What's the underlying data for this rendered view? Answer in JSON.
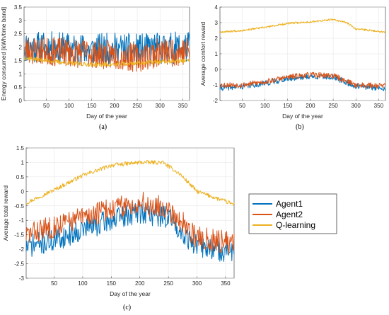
{
  "colors": {
    "agent1": "#0072BD",
    "agent2": "#D95319",
    "qlearning": "#EDB120",
    "grid": "#e3e3e3",
    "axis": "#262626"
  },
  "legend": {
    "items": [
      "Agent1",
      "Agent2",
      "Q-learning"
    ]
  },
  "chart_data": [
    {
      "panel": "(a)",
      "type": "line",
      "xlabel": "Day of the year",
      "ylabel": "Energy consumed [kWh/time band]",
      "xlim": [
        1,
        365
      ],
      "ylim": [
        0,
        3.5
      ],
      "xticks": [
        50,
        100,
        150,
        200,
        250,
        300,
        350
      ],
      "yticks": [
        0,
        0.5,
        1,
        1.5,
        2,
        2.5,
        3,
        3.5
      ],
      "ytick_labels": [
        "0",
        "0.5",
        "1",
        "1.5",
        "2",
        "2.5",
        "3",
        "3.5"
      ],
      "grid": true,
      "series": [
        {
          "name": "Agent1",
          "color": "#0072BD",
          "keypoints_x": [
            1,
            50,
            100,
            150,
            200,
            250,
            300,
            365
          ],
          "keypoints_y": [
            2.0,
            2.0,
            1.95,
            1.9,
            1.95,
            1.9,
            1.95,
            2.0
          ],
          "amplitude": 0.6,
          "seed": 11
        },
        {
          "name": "Agent2",
          "color": "#D95319",
          "keypoints_x": [
            1,
            50,
            100,
            150,
            200,
            250,
            300,
            365
          ],
          "keypoints_y": [
            1.9,
            1.85,
            1.8,
            1.75,
            1.7,
            1.6,
            1.8,
            1.85
          ],
          "amplitude": 0.55,
          "seed": 23
        },
        {
          "name": "Q-learning",
          "color": "#EDB120",
          "keypoints_x": [
            1,
            50,
            100,
            150,
            200,
            250,
            300,
            365
          ],
          "keypoints_y": [
            1.6,
            1.5,
            1.4,
            1.35,
            1.35,
            1.4,
            1.45,
            1.5
          ],
          "amplitude": 0.08,
          "seed": 37
        }
      ]
    },
    {
      "panel": "(b)",
      "type": "line",
      "xlabel": "Day of the year",
      "ylabel": "Average comfort reward",
      "xlim": [
        1,
        365
      ],
      "ylim": [
        -2,
        4
      ],
      "xticks": [
        50,
        100,
        150,
        200,
        250,
        300,
        350
      ],
      "yticks": [
        -2,
        -1,
        0,
        1,
        2,
        3,
        4
      ],
      "ytick_labels": [
        "-2",
        "-1",
        "0",
        "1",
        "2",
        "3",
        "4"
      ],
      "grid": true,
      "series": [
        {
          "name": "Agent1",
          "color": "#0072BD",
          "keypoints_x": [
            1,
            50,
            100,
            150,
            200,
            250,
            300,
            365
          ],
          "keypoints_y": [
            -1.2,
            -1.1,
            -0.9,
            -0.6,
            -0.45,
            -0.5,
            -1.1,
            -1.2
          ],
          "amplitude": 0.18,
          "seed": 41
        },
        {
          "name": "Agent2",
          "color": "#D95319",
          "keypoints_x": [
            1,
            50,
            100,
            150,
            200,
            250,
            300,
            365
          ],
          "keypoints_y": [
            -1.0,
            -1.0,
            -0.8,
            -0.5,
            -0.35,
            -0.4,
            -1.0,
            -1.05
          ],
          "amplitude": 0.18,
          "seed": 53
        },
        {
          "name": "Q-learning",
          "color": "#EDB120",
          "keypoints_x": [
            1,
            50,
            100,
            150,
            200,
            250,
            280,
            300,
            365
          ],
          "keypoints_y": [
            2.4,
            2.5,
            2.7,
            2.95,
            3.05,
            3.2,
            3.0,
            2.6,
            2.4
          ],
          "amplitude": 0.06,
          "seed": 67
        }
      ]
    },
    {
      "panel": "(c)",
      "type": "line",
      "xlabel": "Day of the year",
      "ylabel": "Average total reward",
      "xlim": [
        1,
        365
      ],
      "ylim": [
        -3,
        1.5
      ],
      "xticks": [
        50,
        100,
        150,
        200,
        250,
        300,
        350
      ],
      "yticks": [
        -3,
        -2.5,
        -2,
        -1.5,
        -1,
        -0.5,
        0,
        0.5,
        1,
        1.5
      ],
      "ytick_labels": [
        "-3",
        "-2.5",
        "-2",
        "-1.5",
        "-1",
        "-0.5",
        "0",
        "0.5",
        "1",
        "1.5"
      ],
      "grid": true,
      "series": [
        {
          "name": "Agent1",
          "color": "#0072BD",
          "keypoints_x": [
            1,
            50,
            100,
            150,
            200,
            250,
            300,
            365
          ],
          "keypoints_y": [
            -1.9,
            -1.7,
            -1.3,
            -1.0,
            -0.7,
            -0.9,
            -1.9,
            -2.1
          ],
          "amplitude": 0.4,
          "seed": 71
        },
        {
          "name": "Agent2",
          "color": "#D95319",
          "keypoints_x": [
            1,
            50,
            100,
            150,
            200,
            250,
            300,
            365
          ],
          "keypoints_y": [
            -1.5,
            -1.2,
            -0.9,
            -0.6,
            -0.4,
            -0.6,
            -1.6,
            -1.8
          ],
          "amplitude": 0.4,
          "seed": 83
        },
        {
          "name": "Q-learning",
          "color": "#EDB120",
          "keypoints_x": [
            1,
            50,
            100,
            150,
            200,
            240,
            270,
            300,
            365
          ],
          "keypoints_y": [
            -0.4,
            0.05,
            0.55,
            0.9,
            1.0,
            1.0,
            0.6,
            0.0,
            -0.45
          ],
          "amplitude": 0.07,
          "seed": 97
        }
      ]
    }
  ]
}
